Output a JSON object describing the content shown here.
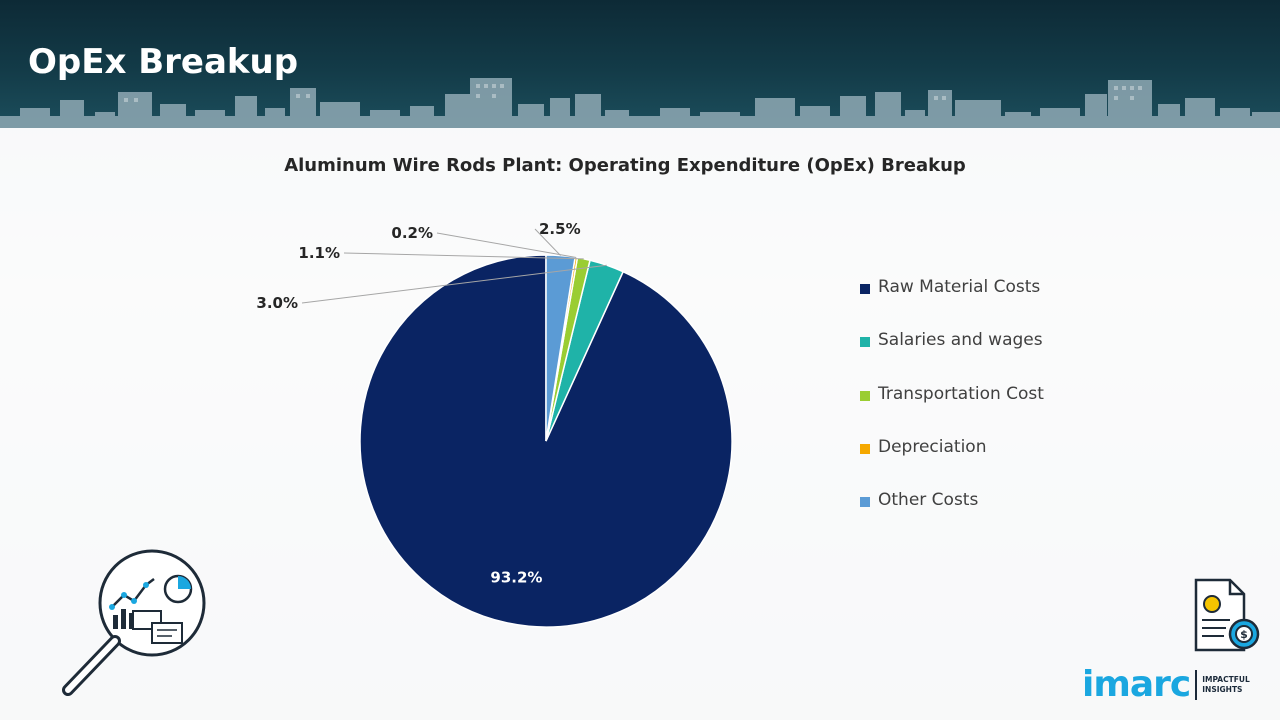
{
  "header": {
    "title": "OpEx Breakup"
  },
  "chart_data": {
    "type": "pie",
    "title": "Aluminum Wire Rods Plant: Operating Expenditure (OpEx) Breakup",
    "categories": [
      "Raw Material Costs",
      "Salaries and wages",
      "Transportation Cost",
      "Depreciation",
      "Other Costs"
    ],
    "values": [
      93.2,
      3.0,
      1.1,
      0.2,
      2.5
    ],
    "value_labels": [
      "93.2%",
      "3.0%",
      "1.1%",
      "0.2%",
      "2.5%"
    ],
    "colors": [
      "#0a2463",
      "#1fb3a8",
      "#9acd32",
      "#f5a800",
      "#5b9bd5"
    ],
    "start_angle_deg": 0,
    "direction": "counterclockwise",
    "legend_position": "right"
  },
  "branding": {
    "name": "imarc",
    "tagline_line1": "IMPACTFUL",
    "tagline_line2": "INSIGHTS"
  },
  "icons": {
    "left": "analytics-magnifier-icon",
    "right": "cost-document-icon"
  }
}
